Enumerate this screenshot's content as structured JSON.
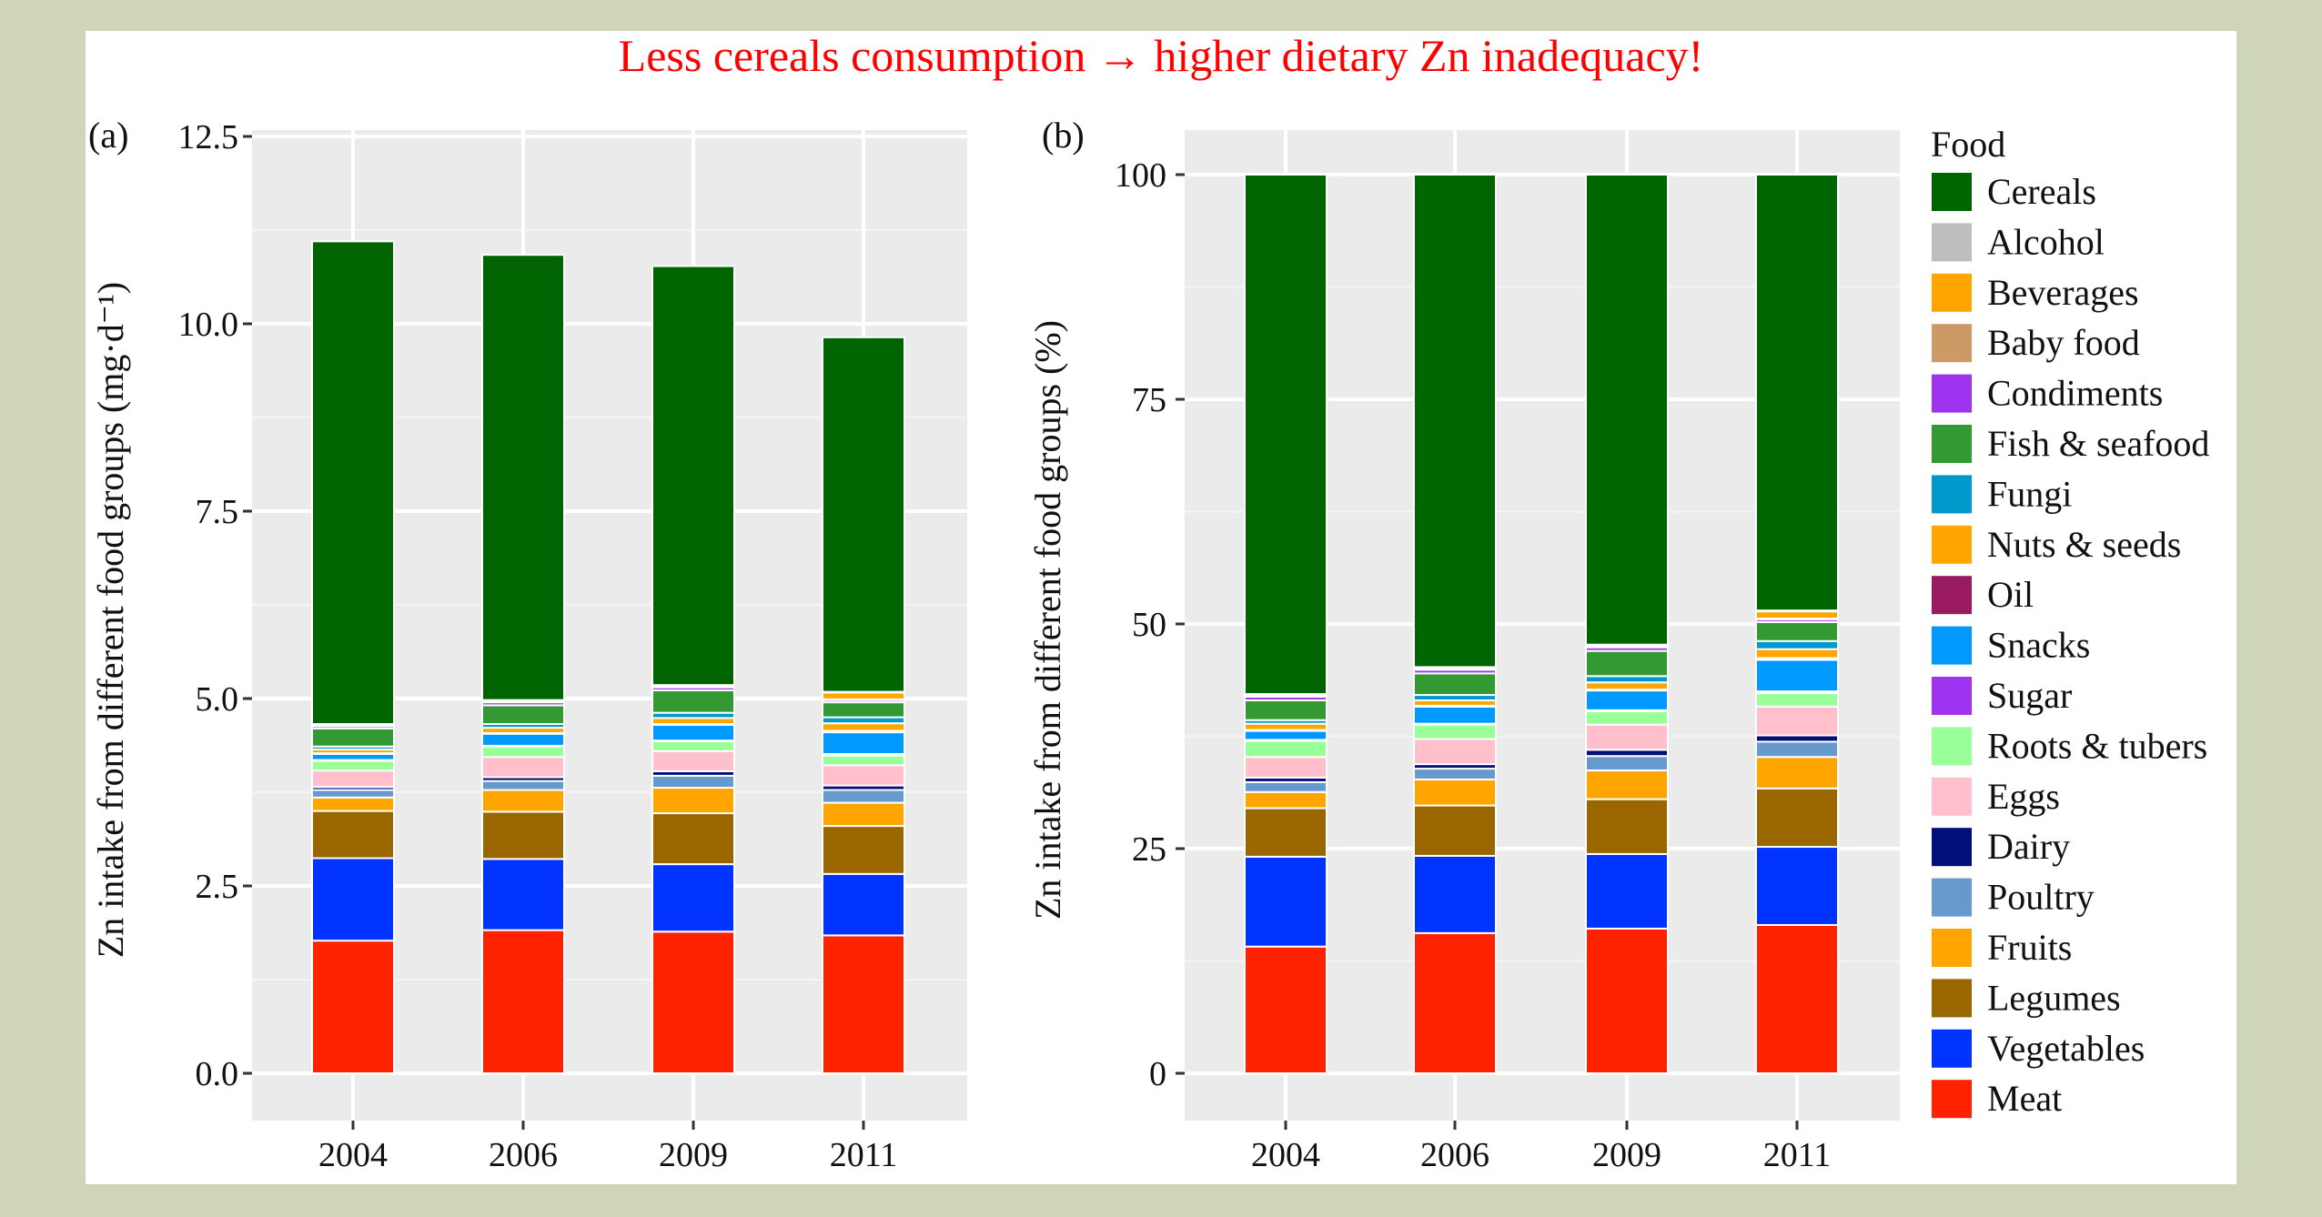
{
  "title": "Less cereals consumption → higher dietary Zn inadequacy!",
  "legend": {
    "title": "Food",
    "items": [
      {
        "name": "Cereals",
        "color": "#006400"
      },
      {
        "name": "Alcohol",
        "color": "#bebebe"
      },
      {
        "name": "Beverages",
        "color": "#ffa500"
      },
      {
        "name": "Baby food",
        "color": "#cd9a66"
      },
      {
        "name": "Condiments",
        "color": "#a033f0"
      },
      {
        "name": "Fish & seafood",
        "color": "#339933"
      },
      {
        "name": "Fungi",
        "color": "#0099cc"
      },
      {
        "name": "Nuts & seeds",
        "color": "#ffa500"
      },
      {
        "name": "Oil",
        "color": "#991a5e"
      },
      {
        "name": "Snacks",
        "color": "#0099ff"
      },
      {
        "name": "Sugar",
        "color": "#a033f0"
      },
      {
        "name": "Roots & tubers",
        "color": "#99ff99"
      },
      {
        "name": "Eggs",
        "color": "#ffc0cb"
      },
      {
        "name": "Dairy",
        "color": "#000f7a"
      },
      {
        "name": "Poultry",
        "color": "#6699cc"
      },
      {
        "name": "Fruits",
        "color": "#ffa500"
      },
      {
        "name": "Legumes",
        "color": "#996600"
      },
      {
        "name": "Vegetables",
        "color": "#0033ff"
      },
      {
        "name": "Meat",
        "color": "#ff2200"
      }
    ]
  },
  "chart_data": [
    {
      "panel_label": "(a)",
      "type": "bar",
      "stacked": true,
      "title": "",
      "xlabel": "",
      "ylabel": "Zn intake from different food groups (mg·d⁻¹)",
      "categories": [
        "2004",
        "2006",
        "2009",
        "2011"
      ],
      "ylim": [
        0,
        12.5
      ],
      "yticks": [
        "0.0",
        "2.5",
        "5.0",
        "7.5",
        "10.0",
        "12.5"
      ],
      "ytick_values": [
        0,
        2.5,
        5,
        7.5,
        10,
        12.5
      ],
      "grid": true,
      "series": [
        {
          "name": "Meat",
          "values": [
            1.77,
            1.91,
            1.89,
            1.84
          ]
        },
        {
          "name": "Vegetables",
          "values": [
            1.1,
            0.95,
            0.9,
            0.82
          ]
        },
        {
          "name": "Legumes",
          "values": [
            0.63,
            0.63,
            0.68,
            0.64
          ]
        },
        {
          "name": "Fruits",
          "values": [
            0.18,
            0.29,
            0.34,
            0.31
          ]
        },
        {
          "name": "Poultry",
          "values": [
            0.1,
            0.12,
            0.16,
            0.17
          ]
        },
        {
          "name": "Dairy",
          "values": [
            0.04,
            0.05,
            0.06,
            0.06
          ]
        },
        {
          "name": "Eggs",
          "values": [
            0.22,
            0.27,
            0.27,
            0.27
          ]
        },
        {
          "name": "Roots & tubers",
          "values": [
            0.13,
            0.14,
            0.13,
            0.13
          ]
        },
        {
          "name": "Sugar",
          "values": [
            0.01,
            0.01,
            0.01,
            0.02
          ]
        },
        {
          "name": "Snacks",
          "values": [
            0.08,
            0.16,
            0.21,
            0.29
          ]
        },
        {
          "name": "Oil",
          "values": [
            0.01,
            0.01,
            0.01,
            0.02
          ]
        },
        {
          "name": "Nuts & seeds",
          "values": [
            0.05,
            0.07,
            0.08,
            0.1
          ]
        },
        {
          "name": "Fungi",
          "values": [
            0.04,
            0.05,
            0.07,
            0.08
          ]
        },
        {
          "name": "Fish & seafood",
          "values": [
            0.24,
            0.25,
            0.3,
            0.2
          ]
        },
        {
          "name": "Condiments",
          "values": [
            0.03,
            0.04,
            0.04,
            0.03
          ]
        },
        {
          "name": "Baby food",
          "values": [
            0.01,
            0.01,
            0.01,
            0.01
          ]
        },
        {
          "name": "Beverages",
          "values": [
            0.01,
            0.01,
            0.01,
            0.09
          ]
        },
        {
          "name": "Alcohol",
          "values": [
            0.01,
            0.01,
            0.01,
            0.01
          ]
        },
        {
          "name": "Cereals",
          "values": [
            6.44,
            5.94,
            5.59,
            4.73
          ]
        }
      ]
    },
    {
      "panel_label": "(b)",
      "type": "bar",
      "stacked": true,
      "title": "",
      "xlabel": "",
      "ylabel": "Zn intake from different food groups (%)",
      "categories": [
        "2004",
        "2006",
        "2009",
        "2011"
      ],
      "ylim": [
        0,
        100
      ],
      "yticks": [
        "0",
        "25",
        "50",
        "75",
        "100"
      ],
      "ytick_values": [
        0,
        25,
        50,
        75,
        100
      ],
      "grid": true,
      "legend_position": "right",
      "series": [
        {
          "name": "Meat",
          "values": [
            14.1,
            15.6,
            16.1,
            16.5
          ]
        },
        {
          "name": "Vegetables",
          "values": [
            10.0,
            8.6,
            8.3,
            8.7
          ]
        },
        {
          "name": "Legumes",
          "values": [
            5.4,
            5.6,
            6.1,
            6.5
          ]
        },
        {
          "name": "Fruits",
          "values": [
            1.8,
            2.9,
            3.2,
            3.5
          ]
        },
        {
          "name": "Poultry",
          "values": [
            1.1,
            1.2,
            1.6,
            1.7
          ]
        },
        {
          "name": "Dairy",
          "values": [
            0.5,
            0.5,
            0.7,
            0.7
          ]
        },
        {
          "name": "Eggs",
          "values": [
            2.3,
            2.8,
            2.8,
            3.2
          ]
        },
        {
          "name": "Roots & tubers",
          "values": [
            1.8,
            1.6,
            1.5,
            1.5
          ]
        },
        {
          "name": "Sugar",
          "values": [
            0.1,
            0.1,
            0.1,
            0.2
          ]
        },
        {
          "name": "Snacks",
          "values": [
            1.0,
            1.9,
            2.2,
            3.5
          ]
        },
        {
          "name": "Oil",
          "values": [
            0.1,
            0.1,
            0.1,
            0.2
          ]
        },
        {
          "name": "Nuts & seeds",
          "values": [
            0.7,
            0.6,
            0.8,
            1.0
          ]
        },
        {
          "name": "Fungi",
          "values": [
            0.4,
            0.6,
            0.7,
            0.9
          ]
        },
        {
          "name": "Fish & seafood",
          "values": [
            2.2,
            2.4,
            2.8,
            2.1
          ]
        },
        {
          "name": "Condiments",
          "values": [
            0.4,
            0.4,
            0.4,
            0.3
          ]
        },
        {
          "name": "Baby food",
          "values": [
            0.1,
            0.1,
            0.1,
            0.1
          ]
        },
        {
          "name": "Beverages",
          "values": [
            0.1,
            0.1,
            0.1,
            0.8
          ]
        },
        {
          "name": "Alcohol",
          "values": [
            0.1,
            0.1,
            0.1,
            0.1
          ]
        },
        {
          "name": "Cereals",
          "values": [
            57.8,
            54.8,
            52.3,
            48.5
          ]
        }
      ]
    }
  ]
}
